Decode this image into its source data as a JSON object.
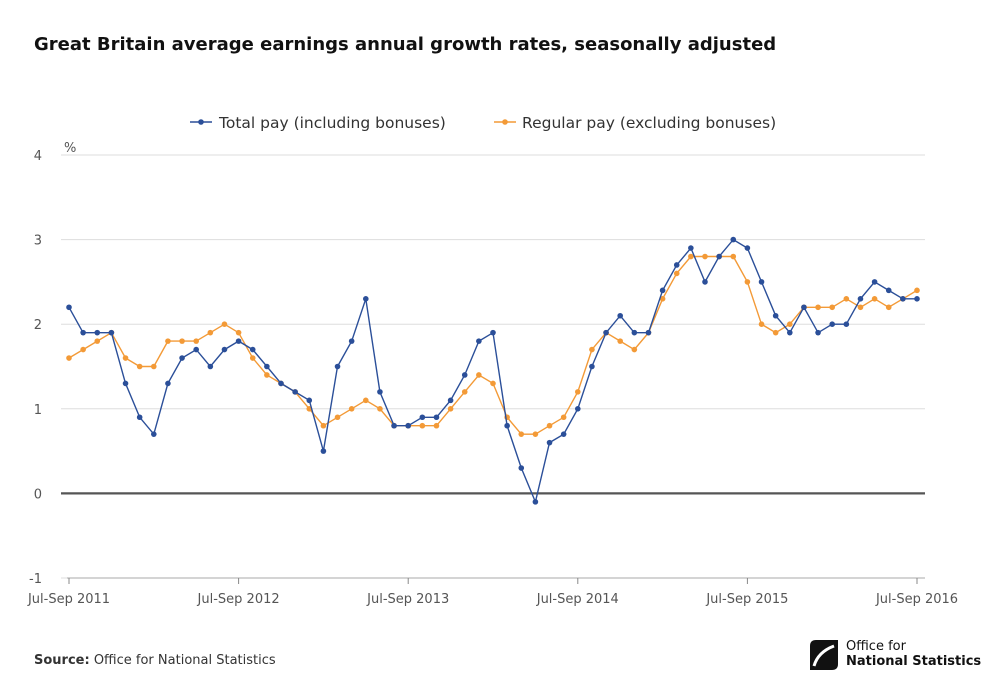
{
  "title": "Great Britain average earnings annual growth rates, seasonally adjusted",
  "source": {
    "label": "Source:",
    "text": "Office for National Statistics"
  },
  "logo": {
    "line1": "Office for",
    "line2": "National Statistics"
  },
  "colors": {
    "total": "#2b4f99",
    "regular": "#f39a37",
    "grid": "#dddddd",
    "zero": "#555555"
  },
  "chart_data": {
    "type": "line",
    "title": "Great Britain average earnings annual growth rates, seasonally adjusted",
    "ylabel": "%",
    "ylim": [
      -1,
      4
    ],
    "yticks": [
      -1,
      0,
      1,
      2,
      3,
      4
    ],
    "grid": true,
    "legend": "top-center",
    "x_tick_labels": [
      "Jul-Sep 2011",
      "Jul-Sep 2012",
      "Jul-Sep 2013",
      "Jul-Sep 2014",
      "Jul-Sep 2015",
      "Jul-Sep 2016"
    ],
    "x_tick_index": [
      0,
      12,
      24,
      36,
      48,
      60
    ],
    "n_points": 61,
    "series": [
      {
        "name": "Total pay (including bonuses)",
        "color": "#2b4f99",
        "values": [
          2.2,
          1.9,
          1.9,
          1.9,
          1.3,
          0.9,
          0.7,
          1.3,
          1.6,
          1.7,
          1.5,
          1.7,
          1.8,
          1.7,
          1.5,
          1.3,
          1.2,
          1.1,
          0.5,
          1.5,
          1.8,
          2.3,
          1.2,
          0.8,
          0.8,
          0.9,
          0.9,
          1.1,
          1.4,
          1.8,
          1.9,
          0.8,
          0.3,
          -0.1,
          0.6,
          0.7,
          1.0,
          1.5,
          1.9,
          2.1,
          1.9,
          1.9,
          2.4,
          2.7,
          2.9,
          2.5,
          2.8,
          3.0,
          2.9,
          2.5,
          2.1,
          1.9,
          2.2,
          1.9,
          2.0,
          2.0,
          2.3,
          2.5,
          2.4,
          2.3,
          2.3
        ]
      },
      {
        "name": "Regular pay (excluding bonuses)",
        "color": "#f39a37",
        "values": [
          1.6,
          1.7,
          1.8,
          1.9,
          1.6,
          1.5,
          1.5,
          1.8,
          1.8,
          1.8,
          1.9,
          2.0,
          1.9,
          1.6,
          1.4,
          1.3,
          1.2,
          1.0,
          0.8,
          0.9,
          1.0,
          1.1,
          1.0,
          0.8,
          0.8,
          0.8,
          0.8,
          1.0,
          1.2,
          1.4,
          1.3,
          0.9,
          0.7,
          0.7,
          0.8,
          0.9,
          1.2,
          1.7,
          1.9,
          1.8,
          1.7,
          1.9,
          2.3,
          2.6,
          2.8,
          2.8,
          2.8,
          2.8,
          2.5,
          2.0,
          1.9,
          2.0,
          2.2,
          2.2,
          2.2,
          2.3,
          2.2,
          2.3,
          2.2,
          2.3,
          2.4
        ]
      }
    ]
  }
}
